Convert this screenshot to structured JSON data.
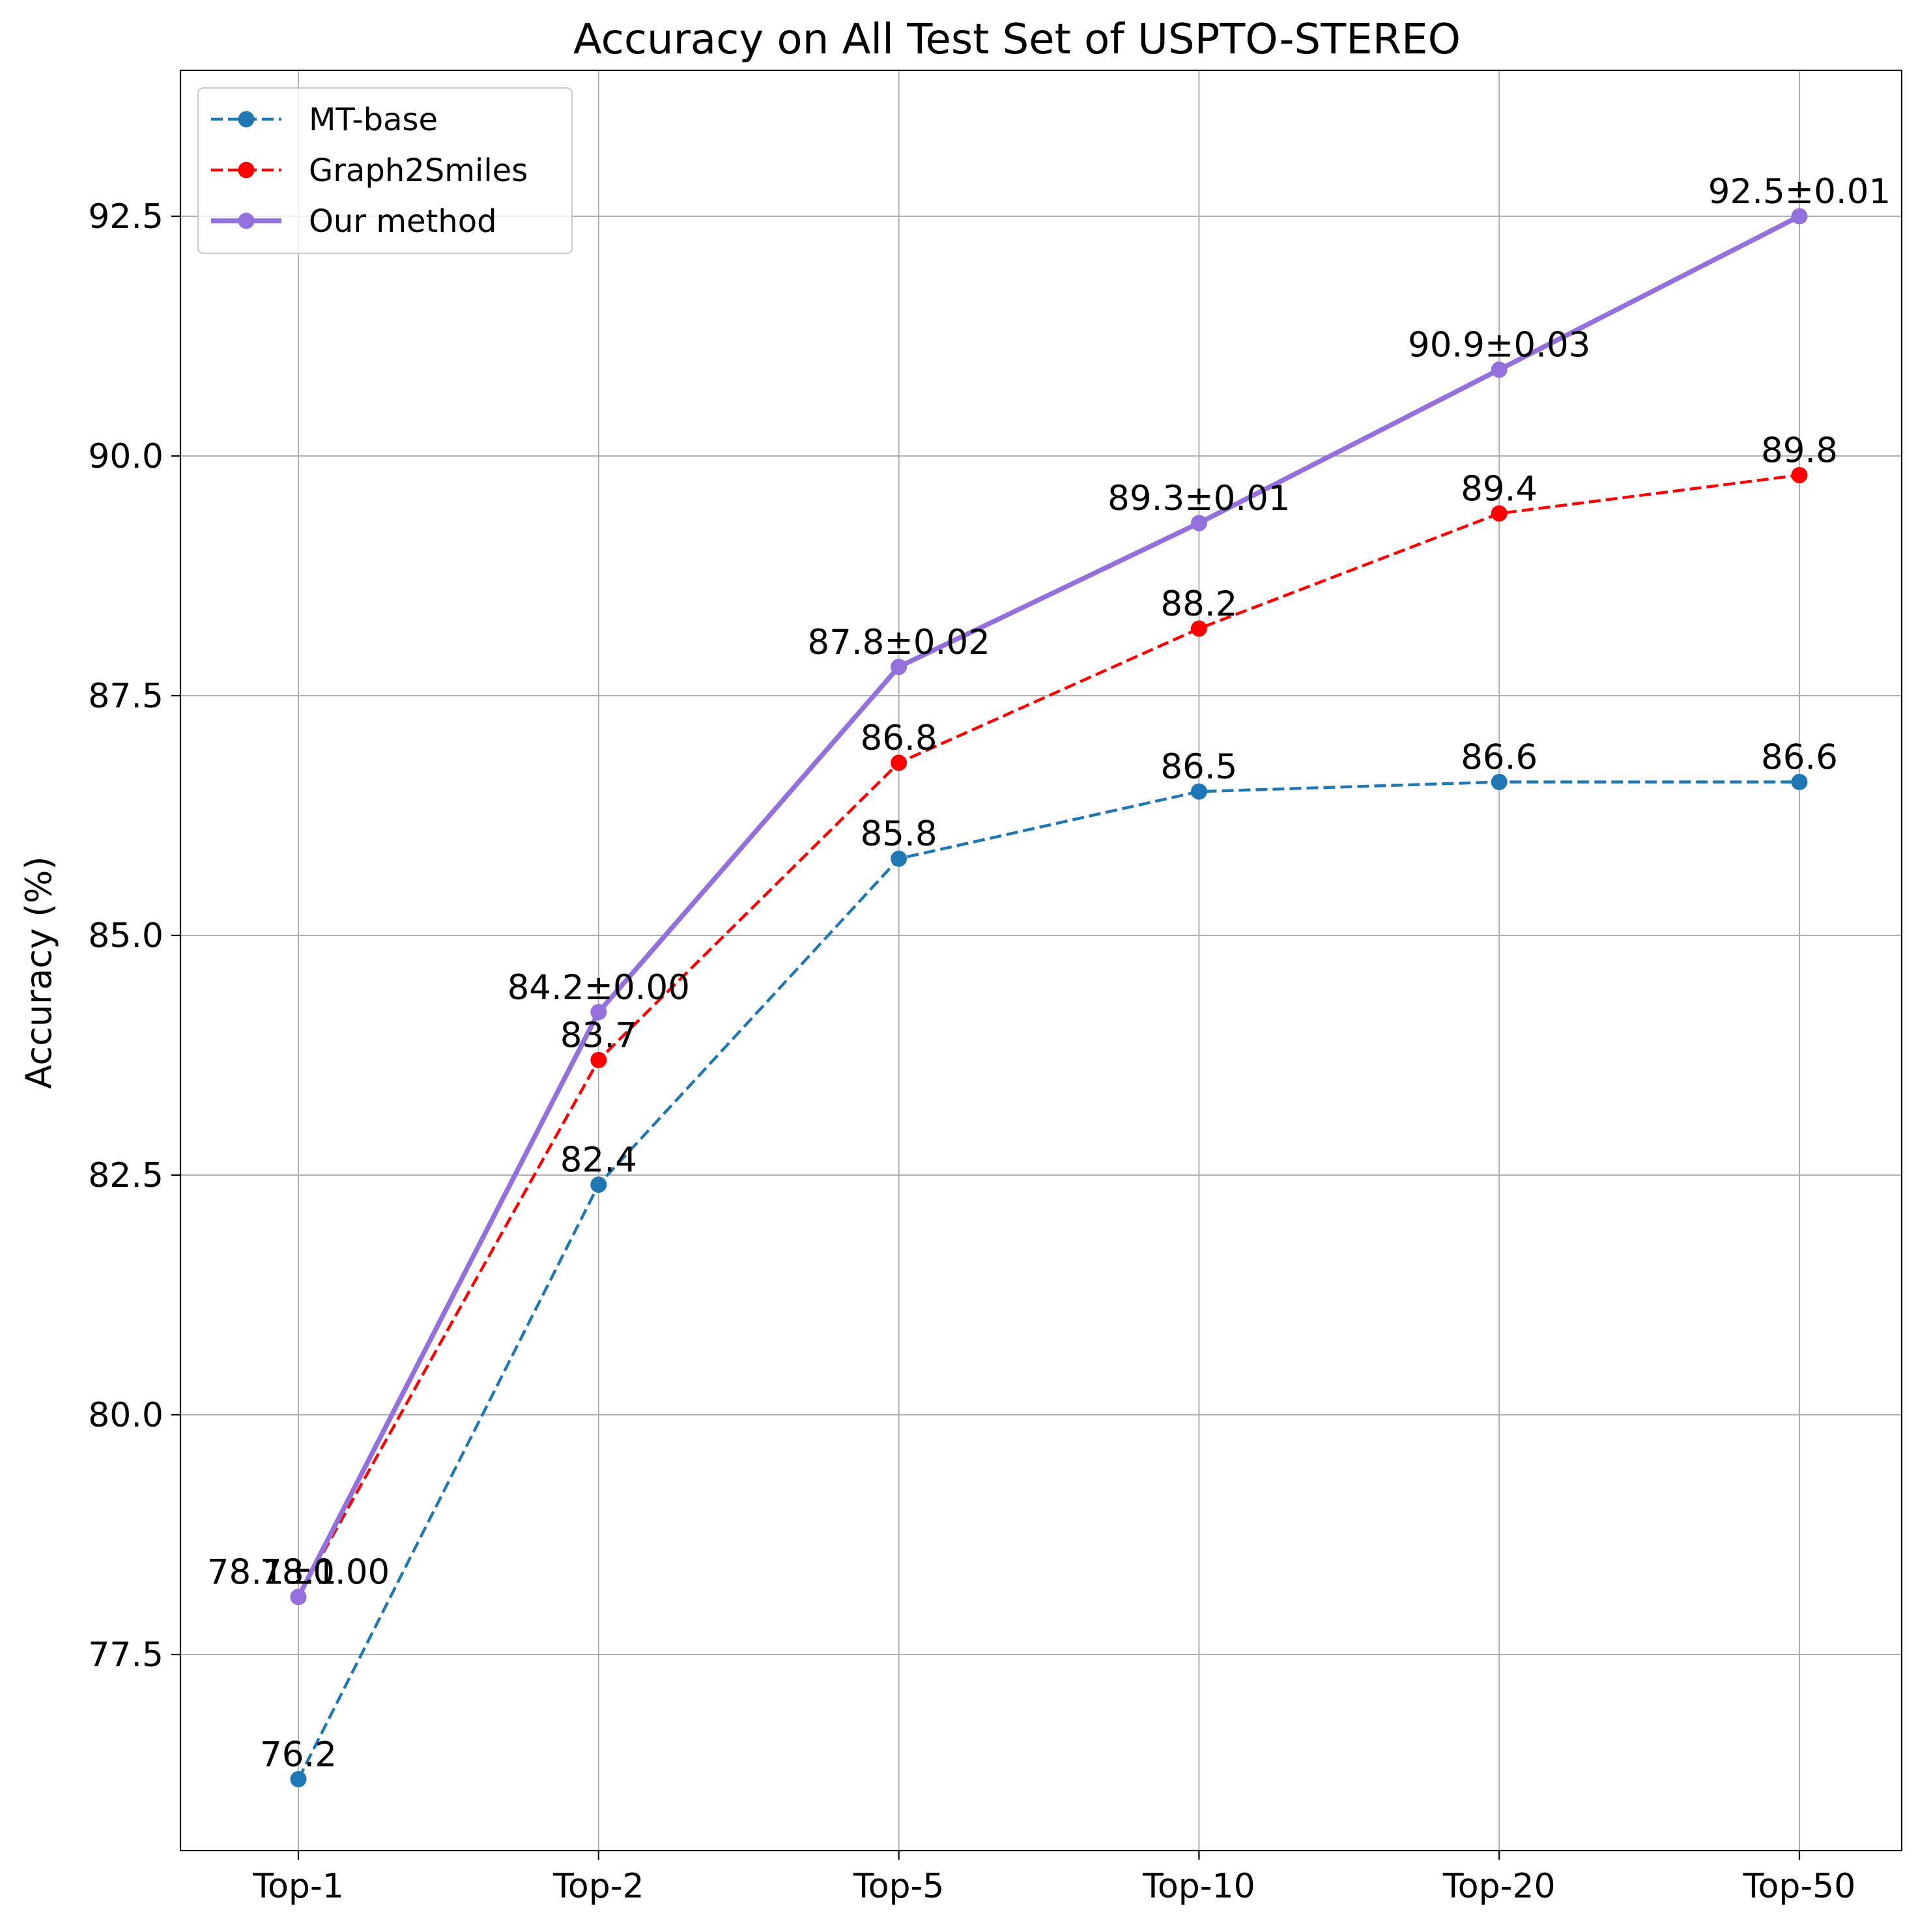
{
  "chart_data": {
    "type": "line",
    "title": "Accuracy on All Test Set of USPTO-STEREO",
    "xlabel": "",
    "ylabel": "Accuracy (%)",
    "categories": [
      "Top-1",
      "Top-2",
      "Top-5",
      "Top-10",
      "Top-20",
      "Top-50"
    ],
    "ylim": [
      75.2,
      94.0
    ],
    "yticks": [
      77.5,
      80.0,
      82.5,
      85.0,
      87.5,
      90.0,
      92.5
    ],
    "ytick_labels": [
      "77.5",
      "80.0",
      "82.5",
      "85.0",
      "87.5",
      "90.0",
      "92.5"
    ],
    "grid": true,
    "legend_position": "top-left",
    "series": [
      {
        "name": "MT-base",
        "values": [
          76.2,
          82.4,
          85.8,
          86.5,
          86.6,
          86.6
        ],
        "labels": [
          "76.2",
          "82.4",
          "85.8",
          "86.5",
          "86.6",
          "86.6"
        ],
        "color": "#1f77b4",
        "line_style": "dashed",
        "marker": "circle"
      },
      {
        "name": "Graph2Smiles",
        "values": [
          78.1,
          83.7,
          86.8,
          88.2,
          89.4,
          89.8
        ],
        "labels": [
          "78.1",
          "83.7",
          "86.8",
          "88.2",
          "89.4",
          "89.8"
        ],
        "color": "#ff0000",
        "line_style": "dashed",
        "marker": "circle"
      },
      {
        "name": "Our method",
        "values": [
          78.1,
          84.2,
          87.8,
          89.3,
          90.9,
          92.5
        ],
        "labels": [
          "78.1±0.00",
          "84.2±0.00",
          "87.8±0.02",
          "89.3±0.01",
          "90.9±0.03",
          "92.5±0.01"
        ],
        "color": "#9370db",
        "line_style": "solid",
        "marker": "circle"
      }
    ]
  }
}
